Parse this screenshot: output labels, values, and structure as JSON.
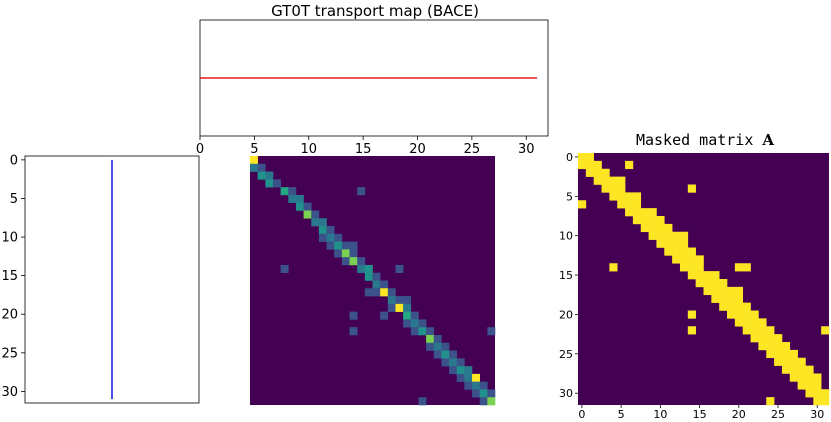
{
  "chart_data": [
    {
      "type": "line",
      "title": "GT0T transport map (BACE)",
      "xlim": [
        0,
        32
      ],
      "xticks": [
        0,
        5,
        10,
        15,
        20,
        25,
        30
      ],
      "series": [
        {
          "x": [
            0,
            31
          ],
          "y": [
            0.5,
            0.5
          ],
          "color": "#e21b1b"
        }
      ]
    },
    {
      "type": "line",
      "ylim": [
        31.5,
        -0.5
      ],
      "yticks": [
        0,
        5,
        10,
        15,
        20,
        25,
        30
      ],
      "series": [
        {
          "x": [
            0.5,
            0.5
          ],
          "y": [
            0,
            31
          ],
          "color": "#1515d8"
        }
      ]
    },
    {
      "type": "heatmap",
      "size": 32,
      "background": "#440154",
      "cells": [
        {
          "r": 0,
          "c": 0,
          "color": "#fde725"
        },
        {
          "r": 1,
          "c": 0,
          "color": "#2a788e"
        },
        {
          "r": 1,
          "c": 1,
          "color": "#3b528b"
        },
        {
          "r": 2,
          "c": 1,
          "color": "#21918c"
        },
        {
          "r": 2,
          "c": 2,
          "color": "#2a788e"
        },
        {
          "r": 3,
          "c": 2,
          "color": "#21918c"
        },
        {
          "r": 3,
          "c": 3,
          "color": "#3b528b"
        },
        {
          "r": 4,
          "c": 4,
          "color": "#22a884"
        },
        {
          "r": 4,
          "c": 5,
          "color": "#3b528b"
        },
        {
          "r": 4,
          "c": 14,
          "color": "#3b528b"
        },
        {
          "r": 5,
          "c": 5,
          "color": "#2a788e"
        },
        {
          "r": 5,
          "c": 6,
          "color": "#2a788e"
        },
        {
          "r": 6,
          "c": 6,
          "color": "#21918c"
        },
        {
          "r": 6,
          "c": 7,
          "color": "#3b528b"
        },
        {
          "r": 7,
          "c": 7,
          "color": "#7ad151"
        },
        {
          "r": 7,
          "c": 8,
          "color": "#3b528b"
        },
        {
          "r": 8,
          "c": 8,
          "color": "#2a788e"
        },
        {
          "r": 8,
          "c": 9,
          "color": "#2a788e"
        },
        {
          "r": 9,
          "c": 9,
          "color": "#21918c"
        },
        {
          "r": 9,
          "c": 10,
          "color": "#3b528b"
        },
        {
          "r": 10,
          "c": 9,
          "color": "#3b528b"
        },
        {
          "r": 10,
          "c": 10,
          "color": "#2a788e"
        },
        {
          "r": 10,
          "c": 11,
          "color": "#3b528b"
        },
        {
          "r": 11,
          "c": 10,
          "color": "#3b528b"
        },
        {
          "r": 11,
          "c": 11,
          "color": "#21918c"
        },
        {
          "r": 11,
          "c": 12,
          "color": "#3b528b"
        },
        {
          "r": 11,
          "c": 13,
          "color": "#3b528b"
        },
        {
          "r": 12,
          "c": 11,
          "color": "#3b528b"
        },
        {
          "r": 12,
          "c": 12,
          "color": "#7ad151"
        },
        {
          "r": 12,
          "c": 13,
          "color": "#3b528b"
        },
        {
          "r": 13,
          "c": 12,
          "color": "#3b528b"
        },
        {
          "r": 13,
          "c": 13,
          "color": "#7ad151"
        },
        {
          "r": 13,
          "c": 14,
          "color": "#3b528b"
        },
        {
          "r": 14,
          "c": 4,
          "color": "#3b528b"
        },
        {
          "r": 14,
          "c": 14,
          "color": "#2a788e"
        },
        {
          "r": 14,
          "c": 15,
          "color": "#21918c"
        },
        {
          "r": 14,
          "c": 19,
          "color": "#3b528b"
        },
        {
          "r": 15,
          "c": 15,
          "color": "#21918c"
        },
        {
          "r": 15,
          "c": 16,
          "color": "#3b528b"
        },
        {
          "r": 16,
          "c": 16,
          "color": "#2a788e"
        },
        {
          "r": 16,
          "c": 17,
          "color": "#3b528b"
        },
        {
          "r": 17,
          "c": 15,
          "color": "#3b528b"
        },
        {
          "r": 17,
          "c": 16,
          "color": "#3b528b"
        },
        {
          "r": 17,
          "c": 17,
          "color": "#fde725"
        },
        {
          "r": 17,
          "c": 18,
          "color": "#3b528b"
        },
        {
          "r": 18,
          "c": 18,
          "color": "#2a788e"
        },
        {
          "r": 18,
          "c": 19,
          "color": "#3b528b"
        },
        {
          "r": 18,
          "c": 20,
          "color": "#3b528b"
        },
        {
          "r": 19,
          "c": 18,
          "color": "#3b528b"
        },
        {
          "r": 19,
          "c": 19,
          "color": "#fde725"
        },
        {
          "r": 19,
          "c": 20,
          "color": "#2a788e"
        },
        {
          "r": 20,
          "c": 13,
          "color": "#3b528b"
        },
        {
          "r": 20,
          "c": 17,
          "color": "#3b528b"
        },
        {
          "r": 20,
          "c": 20,
          "color": "#22a884"
        },
        {
          "r": 20,
          "c": 21,
          "color": "#3b528b"
        },
        {
          "r": 21,
          "c": 20,
          "color": "#3b528b"
        },
        {
          "r": 21,
          "c": 21,
          "color": "#2a788e"
        },
        {
          "r": 21,
          "c": 22,
          "color": "#3b528b"
        },
        {
          "r": 22,
          "c": 13,
          "color": "#3b528b"
        },
        {
          "r": 22,
          "c": 21,
          "color": "#3b528b"
        },
        {
          "r": 22,
          "c": 22,
          "color": "#21918c"
        },
        {
          "r": 22,
          "c": 23,
          "color": "#3b528b"
        },
        {
          "r": 22,
          "c": 31,
          "color": "#3b528b"
        },
        {
          "r": 23,
          "c": 23,
          "color": "#7ad151"
        },
        {
          "r": 23,
          "c": 24,
          "color": "#3b528b"
        },
        {
          "r": 24,
          "c": 23,
          "color": "#3b528b"
        },
        {
          "r": 24,
          "c": 24,
          "color": "#2a788e"
        },
        {
          "r": 24,
          "c": 25,
          "color": "#3b528b"
        },
        {
          "r": 25,
          "c": 24,
          "color": "#3b528b"
        },
        {
          "r": 25,
          "c": 25,
          "color": "#21918c"
        },
        {
          "r": 25,
          "c": 26,
          "color": "#3b528b"
        },
        {
          "r": 26,
          "c": 25,
          "color": "#3b528b"
        },
        {
          "r": 26,
          "c": 26,
          "color": "#2a788e"
        },
        {
          "r": 26,
          "c": 27,
          "color": "#3b528b"
        },
        {
          "r": 27,
          "c": 26,
          "color": "#3b528b"
        },
        {
          "r": 27,
          "c": 27,
          "color": "#21918c"
        },
        {
          "r": 27,
          "c": 28,
          "color": "#2a788e"
        },
        {
          "r": 28,
          "c": 27,
          "color": "#3b528b"
        },
        {
          "r": 28,
          "c": 28,
          "color": "#2a788e"
        },
        {
          "r": 28,
          "c": 29,
          "color": "#fde725"
        },
        {
          "r": 29,
          "c": 28,
          "color": "#3b528b"
        },
        {
          "r": 29,
          "c": 29,
          "color": "#2a788e"
        },
        {
          "r": 29,
          "c": 30,
          "color": "#3b528b"
        },
        {
          "r": 30,
          "c": 29,
          "color": "#3b528b"
        },
        {
          "r": 30,
          "c": 30,
          "color": "#21918c"
        },
        {
          "r": 30,
          "c": 31,
          "color": "#3b528b"
        },
        {
          "r": 31,
          "c": 22,
          "color": "#3b528b"
        },
        {
          "r": 31,
          "c": 30,
          "color": "#3b528b"
        },
        {
          "r": 31,
          "c": 31,
          "color": "#7ad151"
        }
      ]
    },
    {
      "type": "heatmap",
      "title_prefix": "Masked matrix ",
      "title_bold": "A",
      "size": 32,
      "background": "#440154",
      "on_color": "#fde725",
      "xticks": [
        0,
        5,
        10,
        15,
        20,
        25,
        30
      ],
      "yticks": [
        0,
        5,
        10,
        15,
        20,
        25,
        30
      ],
      "cells": [
        [
          0,
          0
        ],
        [
          0,
          1
        ],
        [
          1,
          0
        ],
        [
          1,
          1
        ],
        [
          1,
          2
        ],
        [
          1,
          6
        ],
        [
          2,
          1
        ],
        [
          2,
          2
        ],
        [
          2,
          3
        ],
        [
          3,
          2
        ],
        [
          3,
          3
        ],
        [
          3,
          4
        ],
        [
          3,
          5
        ],
        [
          4,
          3
        ],
        [
          4,
          4
        ],
        [
          4,
          5
        ],
        [
          4,
          14
        ],
        [
          5,
          4
        ],
        [
          5,
          5
        ],
        [
          5,
          6
        ],
        [
          5,
          7
        ],
        [
          6,
          0
        ],
        [
          6,
          5
        ],
        [
          6,
          6
        ],
        [
          6,
          7
        ],
        [
          7,
          6
        ],
        [
          7,
          7
        ],
        [
          7,
          8
        ],
        [
          7,
          9
        ],
        [
          8,
          7
        ],
        [
          8,
          8
        ],
        [
          8,
          9
        ],
        [
          8,
          10
        ],
        [
          9,
          8
        ],
        [
          9,
          9
        ],
        [
          9,
          10
        ],
        [
          9,
          11
        ],
        [
          10,
          9
        ],
        [
          10,
          10
        ],
        [
          10,
          11
        ],
        [
          10,
          12
        ],
        [
          10,
          13
        ],
        [
          11,
          10
        ],
        [
          11,
          11
        ],
        [
          11,
          12
        ],
        [
          11,
          13
        ],
        [
          12,
          11
        ],
        [
          12,
          12
        ],
        [
          12,
          13
        ],
        [
          12,
          14
        ],
        [
          13,
          12
        ],
        [
          13,
          13
        ],
        [
          13,
          14
        ],
        [
          13,
          15
        ],
        [
          14,
          4
        ],
        [
          14,
          13
        ],
        [
          14,
          14
        ],
        [
          14,
          15
        ],
        [
          14,
          20
        ],
        [
          14,
          21
        ],
        [
          15,
          14
        ],
        [
          15,
          15
        ],
        [
          15,
          16
        ],
        [
          15,
          17
        ],
        [
          16,
          15
        ],
        [
          16,
          16
        ],
        [
          16,
          17
        ],
        [
          16,
          18
        ],
        [
          17,
          16
        ],
        [
          17,
          17
        ],
        [
          17,
          18
        ],
        [
          17,
          19
        ],
        [
          17,
          20
        ],
        [
          18,
          17
        ],
        [
          18,
          18
        ],
        [
          18,
          19
        ],
        [
          18,
          20
        ],
        [
          19,
          18
        ],
        [
          19,
          19
        ],
        [
          19,
          20
        ],
        [
          19,
          21
        ],
        [
          20,
          14
        ],
        [
          20,
          19
        ],
        [
          20,
          20
        ],
        [
          20,
          21
        ],
        [
          20,
          22
        ],
        [
          21,
          20
        ],
        [
          21,
          21
        ],
        [
          21,
          22
        ],
        [
          21,
          23
        ],
        [
          22,
          14
        ],
        [
          22,
          21
        ],
        [
          22,
          22
        ],
        [
          22,
          23
        ],
        [
          22,
          24
        ],
        [
          22,
          31
        ],
        [
          23,
          22
        ],
        [
          23,
          23
        ],
        [
          23,
          24
        ],
        [
          23,
          25
        ],
        [
          24,
          23
        ],
        [
          24,
          24
        ],
        [
          24,
          25
        ],
        [
          24,
          26
        ],
        [
          25,
          24
        ],
        [
          25,
          25
        ],
        [
          25,
          26
        ],
        [
          25,
          27
        ],
        [
          26,
          25
        ],
        [
          26,
          26
        ],
        [
          26,
          27
        ],
        [
          26,
          28
        ],
        [
          27,
          26
        ],
        [
          27,
          27
        ],
        [
          27,
          28
        ],
        [
          27,
          29
        ],
        [
          28,
          27
        ],
        [
          28,
          28
        ],
        [
          28,
          29
        ],
        [
          28,
          30
        ],
        [
          29,
          28
        ],
        [
          29,
          29
        ],
        [
          29,
          30
        ],
        [
          30,
          29
        ],
        [
          30,
          30
        ],
        [
          30,
          31
        ],
        [
          31,
          24
        ],
        [
          31,
          30
        ],
        [
          31,
          31
        ]
      ]
    }
  ]
}
